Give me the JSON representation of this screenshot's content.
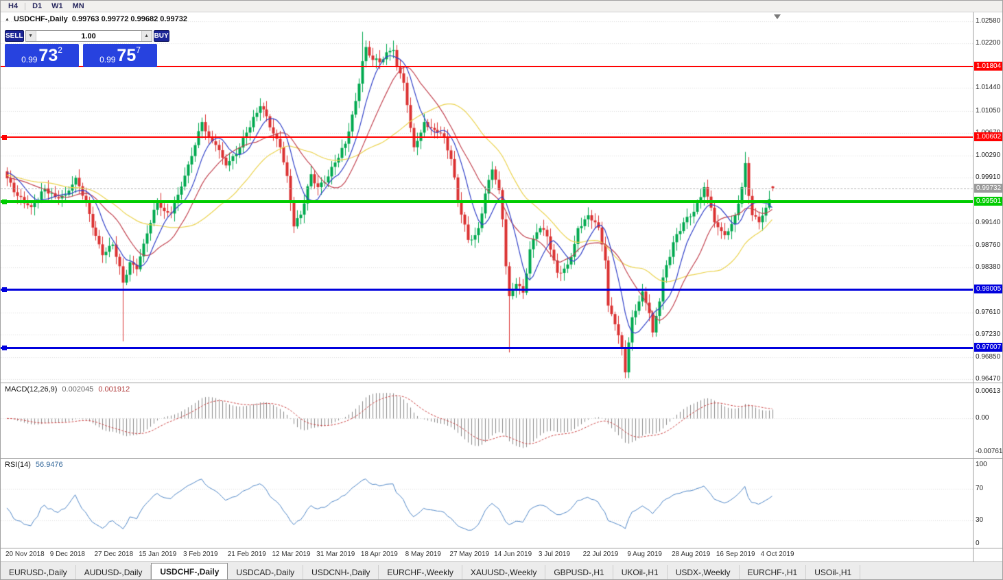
{
  "toolbar": {
    "timeframes": [
      "H4",
      "D1",
      "W1",
      "MN"
    ]
  },
  "icons": {
    "panel_toggle": "▲",
    "spinner_down": "▼",
    "spinner_up": "▲"
  },
  "chart": {
    "title": "USDCHF-,Daily",
    "ohlc": "0.99763 0.99772 0.99682 0.99732",
    "trade_panel": {
      "sell_label": "SELL",
      "buy_label": "BUY",
      "volume": "1.00",
      "sell_price": {
        "prefix": "0.99",
        "big": "73",
        "sup": "2"
      },
      "buy_price": {
        "prefix": "0.99",
        "big": "75",
        "sup": "7"
      }
    }
  },
  "colors": {
    "grid": "#DCDCDC",
    "background": "#FFFFFF",
    "toolbar_bg": "#F1F0EE",
    "separator": "#9C9C9C",
    "accent_blue": "#2742DF",
    "button_navy": "#1B2596",
    "tab_bg": "#ECECEC"
  },
  "chart_data": {
    "type": "candlestick",
    "symbol": "USDCHF",
    "period": "Daily",
    "last_bar": {
      "open": 0.99763,
      "high": 0.99772,
      "low": 0.99682,
      "close": 0.99732
    },
    "current_price": "0.99732",
    "bars_per_label": 13,
    "x_labels": [
      "20 Nov 2018",
      "9 Dec 2018",
      "27 Dec 2018",
      "15 Jan 2019",
      "3 Feb 2019",
      "21 Feb 2019",
      "12 Mar 2019",
      "31 Mar 2019",
      "18 Apr 2019",
      "8 May 2019",
      "27 May 2019",
      "14 Jun 2019",
      "3 Jul 2019",
      "22 Jul 2019",
      "9 Aug 2019",
      "28 Aug 2019",
      "16 Sep 2019",
      "4 Oct 2019"
    ],
    "price_axis_ticks": [
      "1.02580",
      "1.02200",
      "1.01440",
      "1.01050",
      "1.00670",
      "1.00290",
      "0.99910",
      "0.99140",
      "0.98760",
      "0.98380",
      "0.97610",
      "0.97230",
      "0.96850",
      "0.96470"
    ],
    "price_badges": [
      {
        "label": "1.01804",
        "color": "#FF0000"
      },
      {
        "label": "1.00602",
        "color": "#FF0000"
      },
      {
        "label": "0.99732",
        "color": "#9A9A9A"
      },
      {
        "label": "0.99501",
        "color": "#00CC00"
      },
      {
        "label": "0.98005",
        "color": "#0000DD"
      },
      {
        "label": "0.97007",
        "color": "#0000DD"
      }
    ],
    "hlines": [
      {
        "price": 1.01804,
        "color": "#FF0000",
        "thickness": 2,
        "handle": false
      },
      {
        "price": 1.00602,
        "color": "#FF0000",
        "thickness": 2,
        "handle": true
      },
      {
        "price": 0.99501,
        "color": "#00CC00",
        "thickness": 4,
        "handle": true
      },
      {
        "price": 0.98005,
        "color": "#0000DD",
        "thickness": 3,
        "handle": true
      },
      {
        "price": 0.97007,
        "color": "#0000DD",
        "thickness": 3,
        "handle": true
      }
    ],
    "candles": {
      "up_color": "#00A94F",
      "down_color": "#DB3232",
      "close_path_anchors": [
        [
          0,
          0.999
        ],
        [
          3,
          0.996
        ],
        [
          7,
          0.9941
        ],
        [
          11,
          0.9973
        ],
        [
          14,
          0.9958
        ],
        [
          17,
          0.9962
        ],
        [
          20,
          0.9991
        ],
        [
          23,
          0.995
        ],
        [
          25,
          0.9906
        ],
        [
          28,
          0.9859
        ],
        [
          31,
          0.9877
        ],
        [
          33,
          0.984
        ],
        [
          34,
          0.9812
        ],
        [
          36,
          0.9847
        ],
        [
          38,
          0.9835
        ],
        [
          41,
          0.9896
        ],
        [
          44,
          0.9951
        ],
        [
          46,
          0.9934
        ],
        [
          48,
          0.993
        ],
        [
          51,
          0.9976
        ],
        [
          54,
          1.0028
        ],
        [
          57,
          1.0086
        ],
        [
          59,
          1.006
        ],
        [
          61,
          1.0047
        ],
        [
          64,
          1.0012
        ],
        [
          67,
          1.0031
        ],
        [
          70,
          1.0068
        ],
        [
          74,
          1.0113
        ],
        [
          76,
          1.0096
        ],
        [
          77,
          1.0077
        ],
        [
          80,
          1.0043
        ],
        [
          82,
          0.9994
        ],
        [
          84,
          0.9908
        ],
        [
          86,
          0.9928
        ],
        [
          89,
          0.9997
        ],
        [
          91,
          0.9975
        ],
        [
          93,
          0.9983
        ],
        [
          96,
          1.0017
        ],
        [
          99,
          1.0049
        ],
        [
          100,
          1.007
        ],
        [
          102,
          1.0122
        ],
        [
          104,
          1.019
        ],
        [
          105,
          1.0214
        ],
        [
          107,
          1.0192
        ],
        [
          109,
          1.0188
        ],
        [
          111,
          1.0205
        ],
        [
          113,
          1.0209
        ],
        [
          114,
          1.018
        ],
        [
          116,
          1.0153
        ],
        [
          118,
          1.0076
        ],
        [
          119,
          1.0043
        ],
        [
          121,
          1.0068
        ],
        [
          122,
          1.0086
        ],
        [
          124,
          1.0076
        ],
        [
          126,
          1.0068
        ],
        [
          128,
          1.0061
        ],
        [
          130,
          1.0023
        ],
        [
          132,
          0.9952
        ],
        [
          135,
          0.9885
        ],
        [
          137,
          0.9893
        ],
        [
          138,
          0.9905
        ],
        [
          140,
          0.9964
        ],
        [
          142,
          1.0005
        ],
        [
          144,
          0.997
        ],
        [
          145,
          0.992
        ],
        [
          146,
          0.984
        ],
        [
          147,
          0.9789
        ],
        [
          149,
          0.981
        ],
        [
          151,
          0.9795
        ],
        [
          153,
          0.9869
        ],
        [
          155,
          0.9898
        ],
        [
          156,
          0.9905
        ],
        [
          158,
          0.9891
        ],
        [
          160,
          0.985
        ],
        [
          161,
          0.9829
        ],
        [
          163,
          0.9836
        ],
        [
          164,
          0.9843
        ],
        [
          166,
          0.9878
        ],
        [
          167,
          0.9905
        ],
        [
          169,
          0.992
        ],
        [
          170,
          0.9927
        ],
        [
          172,
          0.9915
        ],
        [
          173,
          0.9906
        ],
        [
          175,
          0.985
        ],
        [
          176,
          0.9773
        ],
        [
          178,
          0.9741
        ],
        [
          180,
          0.97
        ],
        [
          181,
          0.9659
        ],
        [
          182,
          0.971
        ],
        [
          183,
          0.9753
        ],
        [
          185,
          0.978
        ],
        [
          186,
          0.9797
        ],
        [
          188,
          0.976
        ],
        [
          189,
          0.9727
        ],
        [
          191,
          0.978
        ],
        [
          192,
          0.9821
        ],
        [
          194,
          0.9856
        ],
        [
          195,
          0.9881
        ],
        [
          197,
          0.99
        ],
        [
          198,
          0.9915
        ],
        [
          200,
          0.9925
        ],
        [
          201,
          0.9933
        ],
        [
          203,
          0.9958
        ],
        [
          204,
          0.9975
        ],
        [
          206,
          0.994
        ],
        [
          207,
          0.9915
        ],
        [
          209,
          0.99
        ],
        [
          210,
          0.9893
        ],
        [
          212,
          0.9912
        ],
        [
          213,
          0.9927
        ],
        [
          215,
          0.9975
        ],
        [
          216,
          1.0016
        ],
        [
          217,
          0.996
        ],
        [
          218,
          0.9927
        ],
        [
          220,
          0.9915
        ],
        [
          222,
          0.994
        ],
        [
          224,
          0.99732
        ]
      ],
      "wick_overrides": [
        {
          "i": 34,
          "low": 0.9712
        },
        {
          "i": 104,
          "high": 1.024
        },
        {
          "i": 113,
          "high": 1.0225
        },
        {
          "i": 147,
          "low": 0.9693
        },
        {
          "i": 181,
          "low": 0.9649
        },
        {
          "i": 216,
          "high": 1.0035
        }
      ]
    },
    "moving_averages": [
      {
        "period": 8,
        "color": "#2F3FC8"
      },
      {
        "period": 16,
        "color": "#C2424F"
      },
      {
        "period": 34,
        "color": "#EBD34F"
      }
    ],
    "indicators": {
      "macd": {
        "name": "MACD(12,26,9)",
        "main_value": "0.002045",
        "signal_value": "0.001912",
        "axis": [
          "0.00613",
          "0.00",
          "-0.00761"
        ],
        "hist_color": "#8A8A8A",
        "signal_color": "#CC4444"
      },
      "rsi": {
        "name": "RSI(14)",
        "value": "56.9476",
        "axis": [
          "100",
          "70",
          "30",
          "0"
        ],
        "levels": [
          70,
          30
        ],
        "line_color": "#4F86C6"
      }
    }
  },
  "tabs": {
    "active_index": 2,
    "items": [
      "EURUSD-,Daily",
      "AUDUSD-,Daily",
      "USDCHF-,Daily",
      "USDCAD-,Daily",
      "USDCNH-,Daily",
      "EURCHF-,Weekly",
      "XAUUSD-,Weekly",
      "GBPUSD-,H1",
      "UKOil-,H1",
      "USDX-,Weekly",
      "EURCHF-,H1",
      "USOil-,H1"
    ]
  }
}
